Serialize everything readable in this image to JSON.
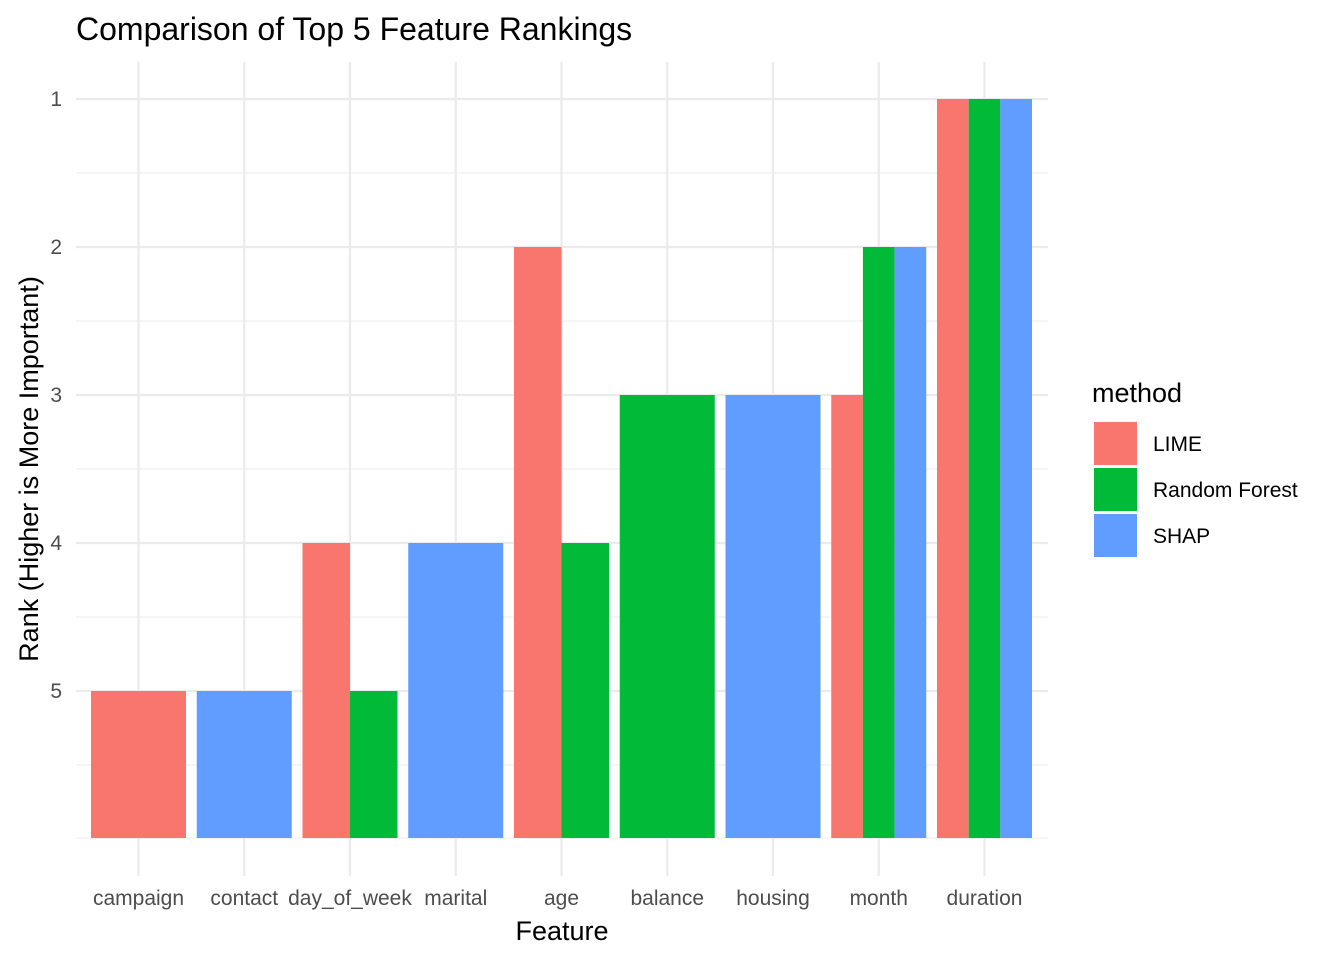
{
  "chart_data": {
    "type": "bar",
    "title": "Comparison of Top 5 Feature Rankings",
    "xlabel": "Feature",
    "ylabel": "Rank (Higher is More Important)",
    "categories": [
      "campaign",
      "contact",
      "day_of_week",
      "marital",
      "age",
      "balance",
      "housing",
      "month",
      "duration"
    ],
    "y_ticks": [
      "1",
      "2",
      "3",
      "4",
      "5"
    ],
    "ylim": [
      5.5,
      1
    ],
    "y_reversed": true,
    "legend": {
      "title": "method",
      "position": "right",
      "entries": [
        "LIME",
        "Random Forest",
        "SHAP"
      ]
    },
    "series": [
      {
        "name": "LIME",
        "color": "#F8766D",
        "values": [
          5,
          null,
          4,
          null,
          2,
          null,
          null,
          3,
          1
        ]
      },
      {
        "name": "Random Forest",
        "color": "#00BA38",
        "values": [
          null,
          null,
          5,
          null,
          4,
          3,
          null,
          2,
          1
        ]
      },
      {
        "name": "SHAP",
        "color": "#619CFF",
        "values": [
          null,
          5,
          null,
          4,
          null,
          null,
          3,
          2,
          1
        ]
      }
    ],
    "grid": true
  }
}
